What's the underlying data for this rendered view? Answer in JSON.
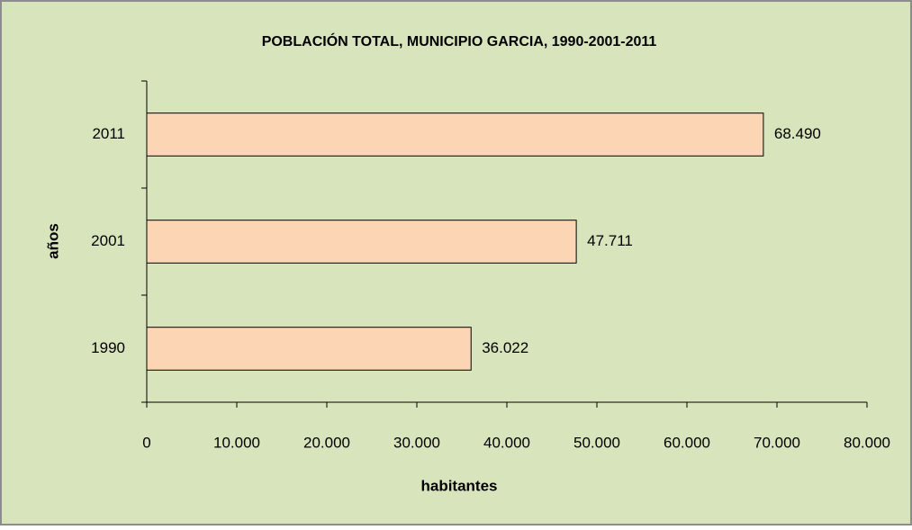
{
  "chart_data": {
    "type": "bar",
    "orientation": "horizontal",
    "title": "POBLACIÓN TOTAL, MUNICIPIO GARCIA, 1990-2001-2011",
    "x_label": "habitantes",
    "y_label": "años",
    "categories": [
      "1990",
      "2001",
      "2011"
    ],
    "values": [
      36022,
      47711,
      68490
    ],
    "value_labels": [
      "36.022",
      "47.711",
      "68.490"
    ],
    "color": "#fcd5b5",
    "xlim": [
      0,
      80000
    ],
    "xticks": [
      0,
      {
        "value": 10000,
        "label": "10.000"
      },
      {
        "value": 20000,
        "label": "20.000"
      },
      {
        "value": 30000,
        "label": "30.000"
      },
      {
        "value": 40000,
        "label": "40.000"
      },
      {
        "value": 50000,
        "label": "50.000"
      },
      {
        "value": 60000,
        "label": "60.000"
      },
      {
        "value": 70000,
        "label": "70.000"
      },
      {
        "value": 80000,
        "label": "80.000"
      }
    ],
    "grid": false
  }
}
